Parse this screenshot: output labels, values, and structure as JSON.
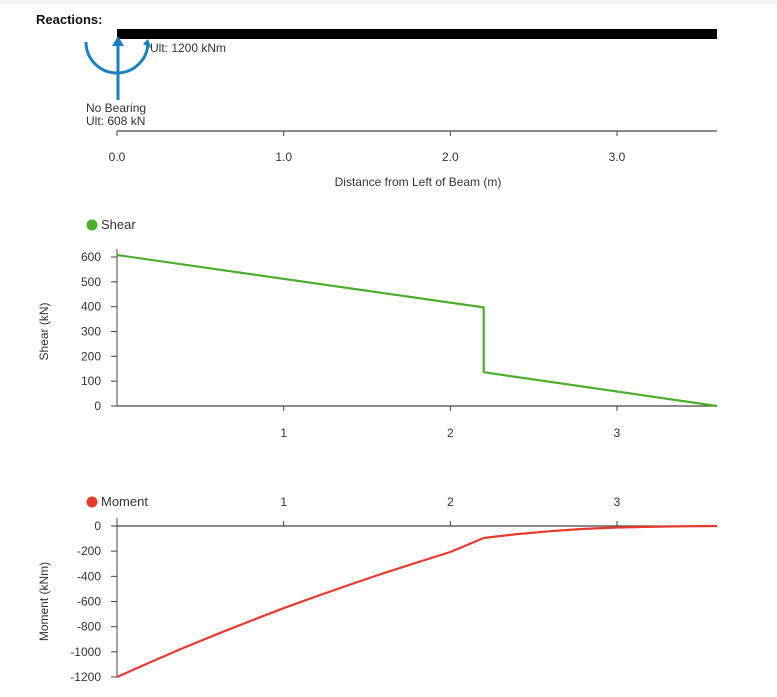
{
  "reactions": {
    "heading": "Reactions:",
    "moment_label": "Ult: 1200 kNm",
    "bearing_label": "No Bearing",
    "ult_label": "Ult: 608 kN",
    "xlabel": "Distance from Left of Beam (m)",
    "ticks": [
      "0.0",
      "1.0",
      "2.0",
      "3.0"
    ],
    "tick_values": [
      0,
      1,
      2,
      3
    ],
    "colors": {
      "support": "#1a7fc1",
      "beam": "#000000"
    }
  },
  "chart_data": [
    {
      "type": "line",
      "title": "",
      "ylabel": "Shear (kN)",
      "xlim": [
        0,
        3.6
      ],
      "ylim": [
        0,
        600
      ],
      "yticks": [
        0,
        100,
        200,
        300,
        400,
        500,
        600
      ],
      "xticks": [
        1,
        2,
        3
      ],
      "xtick_labels": [
        "1",
        "2",
        "3"
      ],
      "ytick_labels": [
        "0",
        "100",
        "200",
        "300",
        "400",
        "500",
        "600"
      ],
      "series": [
        {
          "name": "Shear",
          "color": "#4caf2a",
          "x": [
            0,
            2.2,
            2.2,
            3.6
          ],
          "y": [
            608,
            397,
            136,
            0
          ]
        }
      ]
    },
    {
      "type": "line",
      "title": "",
      "ylabel": "Moment (kNm)",
      "xlim": [
        0,
        3.6
      ],
      "ylim": [
        -1200,
        0
      ],
      "yticks": [
        0,
        -200,
        -400,
        -600,
        -800,
        -1000,
        -1200
      ],
      "xticks": [
        1,
        2,
        3
      ],
      "xtick_labels": [
        "1",
        "2",
        "3"
      ],
      "ytick_labels": [
        "0",
        "-200",
        "-400",
        "-600",
        "-800",
        "-1000",
        "-1200"
      ],
      "series": [
        {
          "name": "Moment",
          "color": "#e8392b",
          "x": [
            0,
            0.2,
            0.4,
            0.6,
            0.8,
            1.0,
            1.2,
            1.4,
            1.6,
            1.8,
            2.0,
            2.2,
            2.4,
            2.6,
            2.8,
            3.0,
            3.2,
            3.4,
            3.6
          ],
          "y": [
            -1200,
            -1083,
            -968,
            -860,
            -755,
            -653,
            -557,
            -465,
            -375,
            -290,
            -207,
            -95,
            -64,
            -41,
            -23,
            -12,
            -6,
            -2,
            0
          ]
        }
      ]
    }
  ]
}
